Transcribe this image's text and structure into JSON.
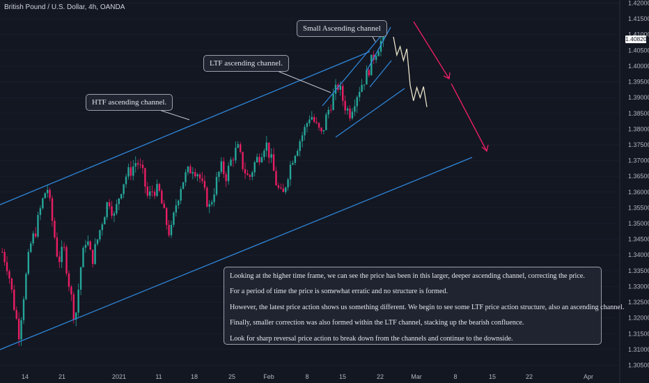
{
  "chart_data": {
    "type": "candlestick",
    "title": "British Pound / U.S. Dollar, 4h, OANDA",
    "y_ticks": [
      "1.42000",
      "1.41500",
      "1.41000",
      "1.40500",
      "1.40000",
      "1.39500",
      "1.39000",
      "1.38500",
      "1.38000",
      "1.37500",
      "1.37000",
      "1.36500",
      "1.36000",
      "1.35500",
      "1.35000",
      "1.34500",
      "1.34000",
      "1.33500",
      "1.33000",
      "1.32500",
      "1.32000",
      "1.31500",
      "1.31000",
      "1.30500"
    ],
    "x_ticks": [
      "14",
      "21",
      "2021",
      "11",
      "18",
      "25",
      "Feb",
      "8",
      "15",
      "22",
      "Mar",
      "8",
      "15",
      "22",
      "Apr"
    ],
    "last_price": "1.40820",
    "ylim": [
      1.305,
      1.42
    ],
    "close_path": [
      1.341,
      1.336,
      1.325,
      1.315,
      1.33,
      1.343,
      1.348,
      1.356,
      1.362,
      1.35,
      1.338,
      1.342,
      1.33,
      1.319,
      1.336,
      1.346,
      1.338,
      1.345,
      1.352,
      1.358,
      1.352,
      1.36,
      1.365,
      1.367,
      1.37,
      1.366,
      1.358,
      1.361,
      1.36,
      1.352,
      1.346,
      1.356,
      1.363,
      1.366,
      1.368,
      1.366,
      1.36,
      1.355,
      1.362,
      1.368,
      1.365,
      1.371,
      1.374,
      1.368,
      1.364,
      1.369,
      1.372,
      1.376,
      1.37,
      1.362,
      1.358,
      1.366,
      1.372,
      1.376,
      1.38,
      1.385,
      1.381,
      1.378,
      1.385,
      1.39,
      1.394,
      1.388,
      1.385,
      1.39,
      1.394,
      1.397,
      1.402,
      1.406,
      1.409
    ],
    "projection": [
      1.4093,
      1.4035,
      1.4062,
      1.4018,
      1.4055,
      1.394,
      1.389,
      1.3932,
      1.39,
      1.3935,
      1.387
    ],
    "annotations": {
      "htf": "HTF ascending channel.",
      "ltf": "LTF ascending channel.",
      "small": "Small Ascending channel"
    },
    "notes": [
      "Looking at the higher time frame, we can see the price has been in this larger, deeper ascending channel, correcting the price.",
      "For a period of time the price is somewhat erratic and no structure is formed.",
      "However, the latest price action shows us something different. We begin to see some LTF price action structure, also an ascending channel.",
      "Finally, smaller correction was also formed within the LTF channel, stacking up the bearish confluence.",
      "Look for sharp reversal price action to break down from the channels and continue to the downside."
    ],
    "colors": {
      "up": "#26a69a",
      "down": "#e91e63",
      "channel": "#2f86d8",
      "arrow": "#e91e63",
      "projection": "#e8e3c9",
      "background": "#131722"
    }
  }
}
